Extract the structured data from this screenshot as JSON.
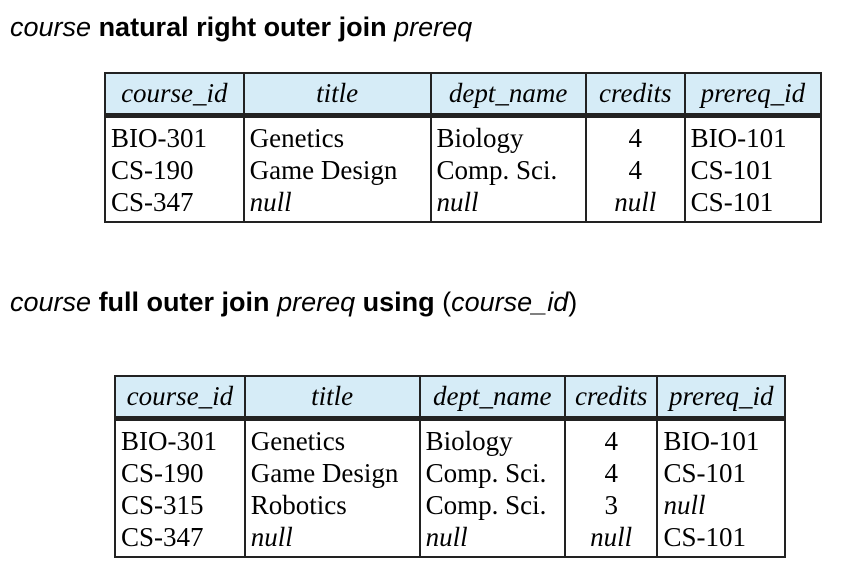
{
  "headings": [
    {
      "a": "course",
      "b": "natural right outer join",
      "c": "prereq"
    },
    {
      "a": "course",
      "b": "full outer join",
      "c": "prereq",
      "d": "using",
      "e": "(",
      "f": "course_id",
      "g": ")"
    }
  ],
  "tables": [
    {
      "columns": [
        "course_id",
        "title",
        "dept_name",
        "credits",
        "prereq_id"
      ],
      "rows": [
        [
          "BIO-301",
          "Genetics",
          "Biology",
          "4",
          "BIO-101"
        ],
        [
          "CS-190",
          "Game Design",
          "Comp. Sci.",
          "4",
          "CS-101"
        ],
        [
          "CS-347",
          "null",
          "null",
          "null",
          "CS-101"
        ]
      ]
    },
    {
      "columns": [
        "course_id",
        "title",
        "dept_name",
        "credits",
        "prereq_id"
      ],
      "rows": [
        [
          "BIO-301",
          "Genetics",
          "Biology",
          "4",
          "BIO-101"
        ],
        [
          "CS-190",
          "Game Design",
          "Comp. Sci.",
          "4",
          "CS-101"
        ],
        [
          "CS-315",
          "Robotics",
          "Comp. Sci.",
          "3",
          "null"
        ],
        [
          "CS-347",
          "null",
          "null",
          "null",
          "CS-101"
        ]
      ]
    }
  ]
}
